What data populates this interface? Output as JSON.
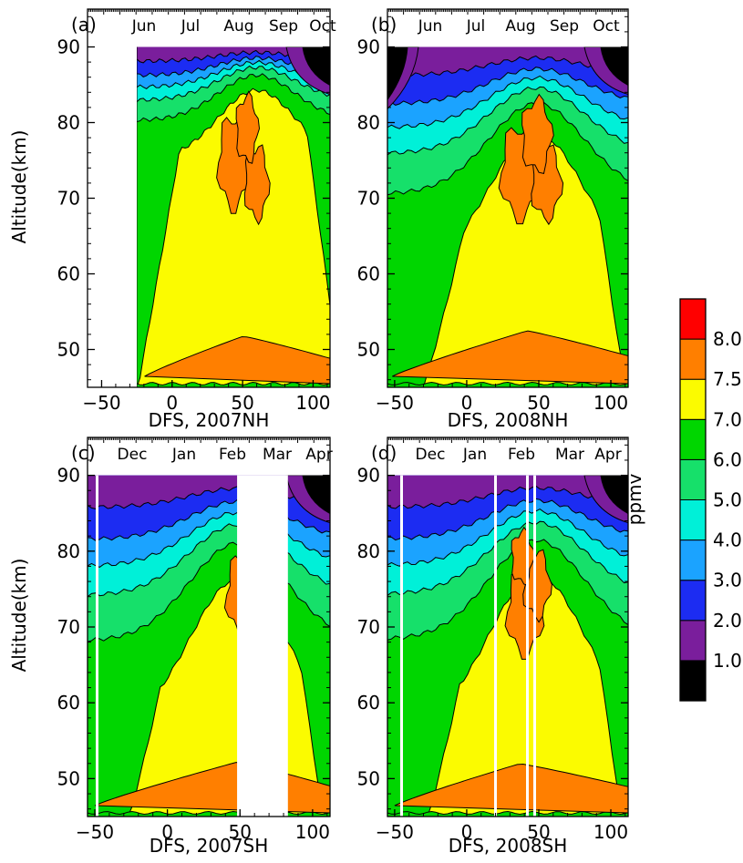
{
  "colors": {
    "band_colors": [
      "#000000",
      "#7a1e9c",
      "#1c2cf2",
      "#1ba3ff",
      "#00f0d8",
      "#16e06a",
      "#00d600",
      "#fbfb00",
      "#ff7f00",
      "#ff0000"
    ],
    "line": "#000000",
    "background": "#ffffff"
  },
  "colorbar": {
    "title": "ppmv",
    "labels": [
      "1.0",
      "2.0",
      "3.0",
      "4.0",
      "5.0",
      "6.0",
      "7.0",
      "7.5",
      "8.0"
    ]
  },
  "chart_data": [
    {
      "type": "heatmap",
      "panel": "(a)",
      "months": [
        "Jun",
        "Jul",
        "Aug",
        "Sep",
        "Oct"
      ],
      "xlabel": "DFS, 2007NH",
      "ylabel": "Altitude(km)",
      "xlim": [
        -60,
        112
      ],
      "ylim": [
        45,
        95
      ],
      "xticks": [
        "−50",
        "0",
        "50",
        "100"
      ],
      "yticks": [
        "50",
        "60",
        "70",
        "80",
        "90"
      ],
      "x_data_start": -25,
      "units": "ppmv"
    },
    {
      "type": "heatmap",
      "panel": "(b)",
      "months": [
        "Jun",
        "Jul",
        "Aug",
        "Sep",
        "Oct"
      ],
      "xlabel": "DFS, 2008NH",
      "ylabel": "",
      "xlim": [
        -55,
        112
      ],
      "ylim": [
        45,
        95
      ],
      "xticks": [
        "−50",
        "0",
        "50",
        "100"
      ],
      "yticks": [
        "50",
        "60",
        "70",
        "80",
        "90"
      ],
      "units": "ppmv"
    },
    {
      "type": "heatmap",
      "panel": "(c)",
      "months": [
        "Dec",
        "Jan",
        "Feb",
        "Mar",
        "Apr"
      ],
      "xlabel": "DFS, 2007SH",
      "ylabel": "Altitude(km)",
      "xlim": [
        -55,
        112
      ],
      "ylim": [
        45,
        95
      ],
      "xticks": [
        "−50",
        "0",
        "50",
        "100"
      ],
      "yticks": [
        "50",
        "60",
        "70",
        "80",
        "90"
      ],
      "data_gap_x": [
        48,
        83
      ],
      "units": "ppmv"
    },
    {
      "type": "heatmap",
      "panel": "(d)",
      "months": [
        "Dec",
        "Jan",
        "Feb",
        "Mar",
        "Apr"
      ],
      "xlabel": "DFS, 2008SH",
      "ylabel": "",
      "xlim": [
        -55,
        112
      ],
      "ylim": [
        45,
        95
      ],
      "xticks": [
        "−50",
        "0",
        "50",
        "100"
      ],
      "yticks": [
        "50",
        "60",
        "70",
        "80",
        "90"
      ],
      "units": "ppmv"
    }
  ]
}
